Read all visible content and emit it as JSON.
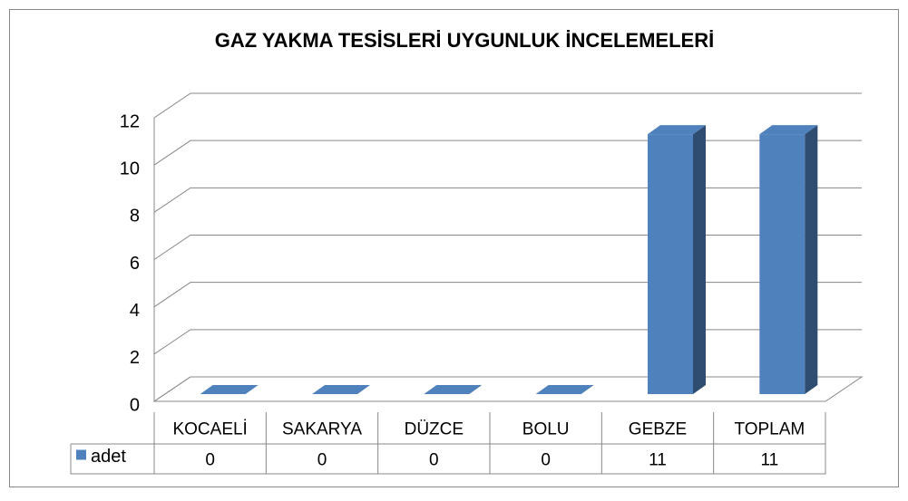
{
  "chart_data": {
    "type": "bar3d",
    "title": "GAZ YAKMA TESİSLERİ UYGUNLUK İNCELEMELERİ",
    "categories": [
      "KOCAELİ",
      "SAKARYA",
      "DÜZCE",
      "BOLU",
      "GEBZE",
      "TOPLAM"
    ],
    "series": [
      {
        "name": "adet",
        "color": "#4f81bd",
        "values": [
          0,
          0,
          0,
          0,
          11,
          11
        ]
      }
    ],
    "ylim": [
      0,
      12
    ],
    "yticks": [
      0,
      2,
      4,
      6,
      8,
      10,
      12
    ],
    "grid": true,
    "data_table": true
  }
}
